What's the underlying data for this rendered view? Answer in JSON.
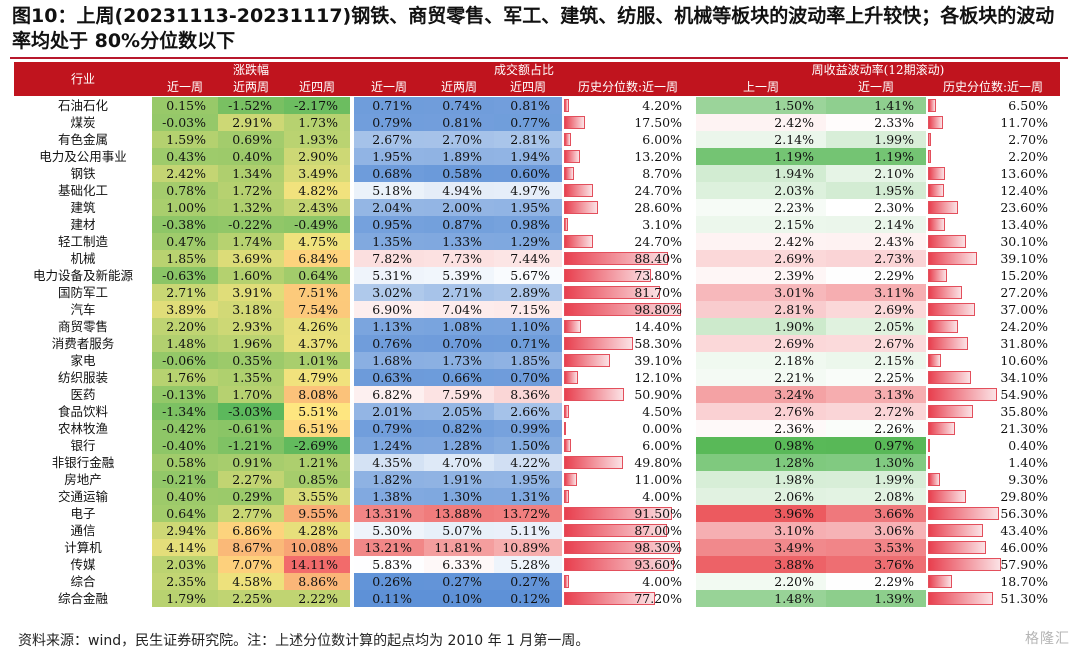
{
  "title": "图10：上周(20231113-20231117)钢铁、商贸零售、军工、建筑、纺服、机械等板块的波动率上升较快；各板块的波动率均处于 80%分位数以下",
  "headers": {
    "industry": "行业",
    "group_change": "涨跌幅",
    "group_turnover": "成交额占比",
    "group_vol": "周收益波动率(12期滚动)",
    "sub_change": [
      "近一周",
      "近两周",
      "近四周"
    ],
    "sub_turnover": [
      "近一周",
      "近两周",
      "近四周",
      "历史分位数:近一周"
    ],
    "sub_vol": [
      "上一周",
      "近一周",
      "历史分位数:近一周"
    ]
  },
  "rows": [
    {
      "industry": "石油石化",
      "change": [
        "0.15%",
        "-1.52%",
        "-2.17%"
      ],
      "turnover": [
        "0.71%",
        "0.74%",
        "0.81%"
      ],
      "turnover_pct": "4.20%",
      "vol": [
        "1.50%",
        "1.41%"
      ],
      "vol_pct": "6.50%"
    },
    {
      "industry": "煤炭",
      "change": [
        "-0.03%",
        "2.91%",
        "1.73%"
      ],
      "turnover": [
        "0.79%",
        "0.81%",
        "0.77%"
      ],
      "turnover_pct": "17.50%",
      "vol": [
        "2.42%",
        "2.33%"
      ],
      "vol_pct": "11.70%"
    },
    {
      "industry": "有色金属",
      "change": [
        "1.59%",
        "0.69%",
        "1.93%"
      ],
      "turnover": [
        "2.67%",
        "2.70%",
        "2.81%"
      ],
      "turnover_pct": "6.00%",
      "vol": [
        "2.14%",
        "1.99%"
      ],
      "vol_pct": "2.70%"
    },
    {
      "industry": "电力及公用事业",
      "change": [
        "0.43%",
        "0.40%",
        "2.90%"
      ],
      "turnover": [
        "1.95%",
        "1.89%",
        "1.94%"
      ],
      "turnover_pct": "13.20%",
      "vol": [
        "1.19%",
        "1.19%"
      ],
      "vol_pct": "2.20%"
    },
    {
      "industry": "钢铁",
      "change": [
        "2.42%",
        "1.34%",
        "3.49%"
      ],
      "turnover": [
        "0.68%",
        "0.58%",
        "0.60%"
      ],
      "turnover_pct": "8.70%",
      "vol": [
        "1.94%",
        "2.10%"
      ],
      "vol_pct": "13.60%"
    },
    {
      "industry": "基础化工",
      "change": [
        "0.78%",
        "1.72%",
        "4.82%"
      ],
      "turnover": [
        "5.18%",
        "4.94%",
        "4.97%"
      ],
      "turnover_pct": "24.70%",
      "vol": [
        "2.03%",
        "1.95%"
      ],
      "vol_pct": "12.40%"
    },
    {
      "industry": "建筑",
      "change": [
        "1.00%",
        "1.32%",
        "2.43%"
      ],
      "turnover": [
        "2.04%",
        "2.00%",
        "1.95%"
      ],
      "turnover_pct": "28.60%",
      "vol": [
        "2.23%",
        "2.30%"
      ],
      "vol_pct": "23.60%"
    },
    {
      "industry": "建材",
      "change": [
        "-0.38%",
        "-0.22%",
        "-0.49%"
      ],
      "turnover": [
        "0.95%",
        "0.87%",
        "0.98%"
      ],
      "turnover_pct": "3.10%",
      "vol": [
        "2.15%",
        "2.14%"
      ],
      "vol_pct": "13.40%"
    },
    {
      "industry": "轻工制造",
      "change": [
        "0.47%",
        "1.74%",
        "4.75%"
      ],
      "turnover": [
        "1.35%",
        "1.33%",
        "1.29%"
      ],
      "turnover_pct": "24.70%",
      "vol": [
        "2.42%",
        "2.43%"
      ],
      "vol_pct": "30.10%"
    },
    {
      "industry": "机械",
      "change": [
        "1.85%",
        "3.69%",
        "6.84%"
      ],
      "turnover": [
        "7.82%",
        "7.73%",
        "7.44%"
      ],
      "turnover_pct": "88.40%",
      "vol": [
        "2.69%",
        "2.73%"
      ],
      "vol_pct": "39.10%"
    },
    {
      "industry": "电力设备及新能源",
      "change": [
        "-0.63%",
        "1.60%",
        "0.64%"
      ],
      "turnover": [
        "5.31%",
        "5.39%",
        "5.67%"
      ],
      "turnover_pct": "73.80%",
      "vol": [
        "2.39%",
        "2.29%"
      ],
      "vol_pct": "15.20%"
    },
    {
      "industry": "国防军工",
      "change": [
        "2.71%",
        "3.91%",
        "7.51%"
      ],
      "turnover": [
        "3.02%",
        "2.71%",
        "2.89%"
      ],
      "turnover_pct": "81.70%",
      "vol": [
        "3.01%",
        "3.11%"
      ],
      "vol_pct": "27.20%"
    },
    {
      "industry": "汽车",
      "change": [
        "3.89%",
        "3.18%",
        "7.54%"
      ],
      "turnover": [
        "6.90%",
        "7.04%",
        "7.15%"
      ],
      "turnover_pct": "98.80%",
      "vol": [
        "2.81%",
        "2.69%"
      ],
      "vol_pct": "37.00%"
    },
    {
      "industry": "商贸零售",
      "change": [
        "2.20%",
        "2.93%",
        "4.26%"
      ],
      "turnover": [
        "1.13%",
        "1.08%",
        "1.10%"
      ],
      "turnover_pct": "14.40%",
      "vol": [
        "1.90%",
        "2.05%"
      ],
      "vol_pct": "24.20%"
    },
    {
      "industry": "消费者服务",
      "change": [
        "1.48%",
        "1.96%",
        "4.37%"
      ],
      "turnover": [
        "0.76%",
        "0.70%",
        "0.71%"
      ],
      "turnover_pct": "58.30%",
      "vol": [
        "2.69%",
        "2.67%"
      ],
      "vol_pct": "31.80%"
    },
    {
      "industry": "家电",
      "change": [
        "-0.06%",
        "0.35%",
        "1.01%"
      ],
      "turnover": [
        "1.68%",
        "1.73%",
        "1.85%"
      ],
      "turnover_pct": "39.10%",
      "vol": [
        "2.18%",
        "2.15%"
      ],
      "vol_pct": "10.60%"
    },
    {
      "industry": "纺织服装",
      "change": [
        "1.76%",
        "1.35%",
        "4.79%"
      ],
      "turnover": [
        "0.63%",
        "0.66%",
        "0.70%"
      ],
      "turnover_pct": "12.10%",
      "vol": [
        "2.21%",
        "2.25%"
      ],
      "vol_pct": "34.10%"
    },
    {
      "industry": "医药",
      "change": [
        "-0.13%",
        "1.70%",
        "8.08%"
      ],
      "turnover": [
        "6.82%",
        "7.59%",
        "8.36%"
      ],
      "turnover_pct": "50.90%",
      "vol": [
        "3.24%",
        "3.13%"
      ],
      "vol_pct": "54.90%"
    },
    {
      "industry": "食品饮料",
      "change": [
        "-1.34%",
        "-3.03%",
        "5.51%"
      ],
      "turnover": [
        "2.01%",
        "2.05%",
        "2.66%"
      ],
      "turnover_pct": "4.50%",
      "vol": [
        "2.76%",
        "2.72%"
      ],
      "vol_pct": "35.80%"
    },
    {
      "industry": "农林牧渔",
      "change": [
        "-0.42%",
        "-0.61%",
        "6.51%"
      ],
      "turnover": [
        "0.79%",
        "0.82%",
        "0.99%"
      ],
      "turnover_pct": "0.00%",
      "vol": [
        "2.36%",
        "2.26%"
      ],
      "vol_pct": "21.30%"
    },
    {
      "industry": "银行",
      "change": [
        "-0.40%",
        "-1.21%",
        "-2.69%"
      ],
      "turnover": [
        "1.24%",
        "1.28%",
        "1.50%"
      ],
      "turnover_pct": "6.00%",
      "vol": [
        "0.98%",
        "0.97%"
      ],
      "vol_pct": "0.40%"
    },
    {
      "industry": "非银行金融",
      "change": [
        "0.58%",
        "0.91%",
        "1.21%"
      ],
      "turnover": [
        "4.35%",
        "4.70%",
        "4.22%"
      ],
      "turnover_pct": "49.80%",
      "vol": [
        "1.28%",
        "1.30%"
      ],
      "vol_pct": "1.40%"
    },
    {
      "industry": "房地产",
      "change": [
        "-0.21%",
        "2.27%",
        "0.85%"
      ],
      "turnover": [
        "1.82%",
        "1.91%",
        "1.95%"
      ],
      "turnover_pct": "11.00%",
      "vol": [
        "1.98%",
        "1.99%"
      ],
      "vol_pct": "9.30%"
    },
    {
      "industry": "交通运输",
      "change": [
        "0.40%",
        "0.29%",
        "3.55%"
      ],
      "turnover": [
        "1.38%",
        "1.30%",
        "1.31%"
      ],
      "turnover_pct": "4.00%",
      "vol": [
        "2.06%",
        "2.08%"
      ],
      "vol_pct": "29.80%"
    },
    {
      "industry": "电子",
      "change": [
        "0.64%",
        "2.77%",
        "9.55%"
      ],
      "turnover": [
        "13.31%",
        "13.88%",
        "13.72%"
      ],
      "turnover_pct": "91.50%",
      "vol": [
        "3.96%",
        "3.66%"
      ],
      "vol_pct": "56.30%"
    },
    {
      "industry": "通信",
      "change": [
        "2.94%",
        "6.86%",
        "4.28%"
      ],
      "turnover": [
        "5.30%",
        "5.07%",
        "5.11%"
      ],
      "turnover_pct": "87.00%",
      "vol": [
        "3.10%",
        "3.06%"
      ],
      "vol_pct": "43.40%"
    },
    {
      "industry": "计算机",
      "change": [
        "4.14%",
        "8.67%",
        "10.08%"
      ],
      "turnover": [
        "13.21%",
        "11.81%",
        "10.89%"
      ],
      "turnover_pct": "98.30%",
      "vol": [
        "3.49%",
        "3.53%"
      ],
      "vol_pct": "46.00%"
    },
    {
      "industry": "传媒",
      "change": [
        "2.03%",
        "7.07%",
        "14.11%"
      ],
      "turnover": [
        "5.83%",
        "6.33%",
        "5.28%"
      ],
      "turnover_pct": "93.60%",
      "vol": [
        "3.88%",
        "3.76%"
      ],
      "vol_pct": "57.90%"
    },
    {
      "industry": "综合",
      "change": [
        "2.35%",
        "4.58%",
        "8.86%"
      ],
      "turnover": [
        "0.26%",
        "0.27%",
        "0.27%"
      ],
      "turnover_pct": "4.00%",
      "vol": [
        "2.20%",
        "2.29%"
      ],
      "vol_pct": "18.70%"
    },
    {
      "industry": "综合金融",
      "change": [
        "1.79%",
        "2.25%",
        "2.22%"
      ],
      "turnover": [
        "0.11%",
        "0.10%",
        "0.12%"
      ],
      "turnover_pct": "77.20%",
      "vol": [
        "1.48%",
        "1.39%"
      ],
      "vol_pct": "51.30%"
    }
  ],
  "source": "资料来源：wind，民生证券研究院。注：上述分位数计算的起点均为 2010 年 1 月第一周。",
  "watermark": "格隆汇",
  "colors": {
    "header": "#c0141e",
    "change_low": "#5cb85c",
    "change_mid": "#ffe680",
    "change_high": "#f26b6b",
    "turnover_low": "#5b8fd6",
    "turnover_high": "#f07a7a",
    "vol_low": "#58b857",
    "vol_high": "#ec5a5f",
    "bar": "#e8404f"
  }
}
